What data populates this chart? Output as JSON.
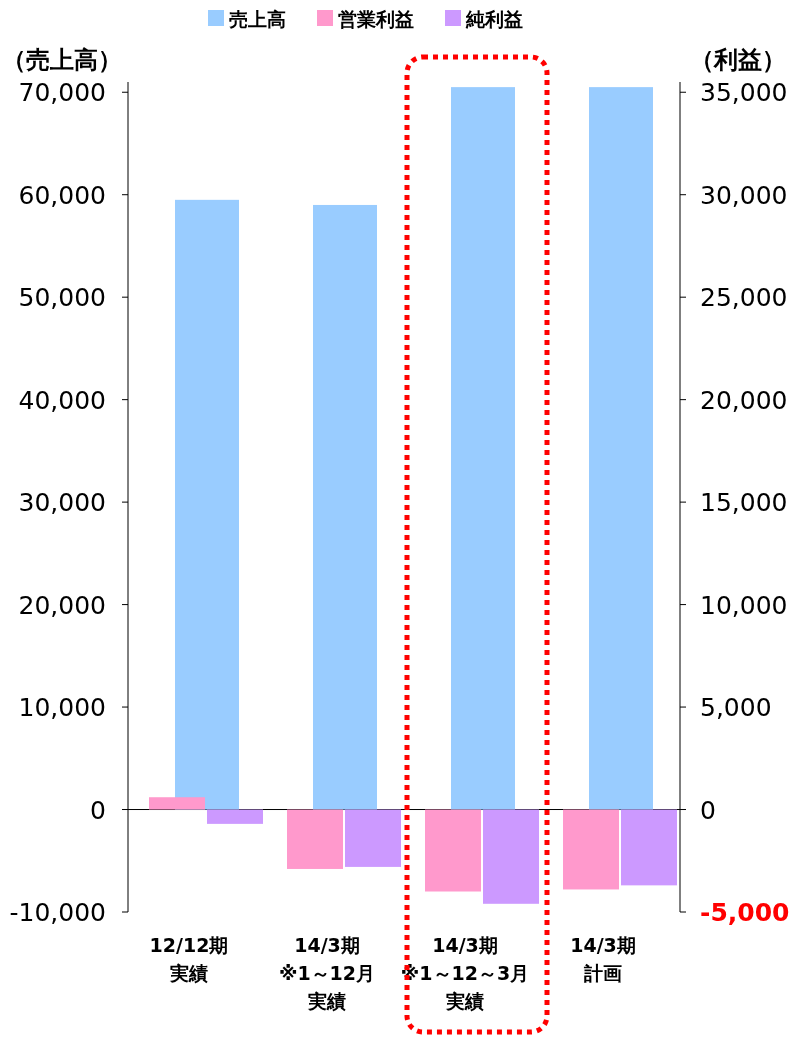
{
  "chart_data": {
    "type": "bar",
    "categories": [
      "12/12期実績",
      "14/3期※1～12月実績",
      "14/3期※1～12～3月実績",
      "14/3期計画"
    ],
    "series": [
      {
        "name": "売上高",
        "color": "#99ccff",
        "values": [
          59500,
          59000,
          70500,
          70500
        ]
      },
      {
        "name": "営業利益",
        "color": "#ff99cc",
        "axis": "y2",
        "values": [
          600,
          -2900,
          -4000,
          -3900
        ]
      },
      {
        "name": "純利益",
        "color": "#cc99ff",
        "axis": "y2",
        "values": [
          -700,
          -2800,
          -4600,
          -3700
        ]
      }
    ],
    "ylabel": "（売上高）",
    "y2label": "（利益）",
    "ylim": [
      -10000,
      71000
    ],
    "yticks": [
      {
        "value": -10000,
        "label": "-10,000"
      },
      {
        "value": 0,
        "label": "0"
      },
      {
        "value": 10000,
        "label": "10,000"
      },
      {
        "value": 20000,
        "label": "20,000"
      },
      {
        "value": 30000,
        "label": "30,000"
      },
      {
        "value": 40000,
        "label": "40,000"
      },
      {
        "value": 50000,
        "label": "50,000"
      },
      {
        "value": 60000,
        "label": "60,000"
      },
      {
        "value": 70000,
        "label": "70,000"
      }
    ],
    "y2lim": [
      -5000,
      35500
    ],
    "y2ticks": [
      {
        "value": -5000,
        "label": "-5,000"
      },
      {
        "value": 0,
        "label": "0"
      },
      {
        "value": 5000,
        "label": "5,000"
      },
      {
        "value": 10000,
        "label": "10,000"
      },
      {
        "value": 15000,
        "label": "15,000"
      },
      {
        "value": 20000,
        "label": "20,000"
      },
      {
        "value": 25000,
        "label": "25,000"
      },
      {
        "value": 30000,
        "label": "30,000"
      },
      {
        "value": 35000,
        "label": "35,000"
      }
    ],
    "ref_lines": [
      {
        "axis": "y",
        "value": 0,
        "color": "#000000"
      }
    ],
    "legend": "top",
    "grid": false
  }
}
